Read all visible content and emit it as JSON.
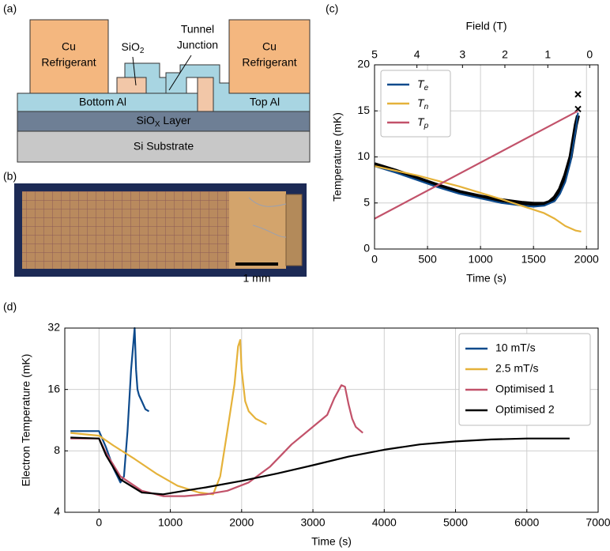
{
  "panel_labels": [
    "(a)",
    "(b)",
    "(c)",
    "(d)"
  ],
  "diagram": {
    "cu_left": [
      "Cu",
      "Refrigerant"
    ],
    "cu_right": [
      "Cu",
      "Refrigerant"
    ],
    "sio2": "SiO2",
    "tunnel": [
      "Tunnel",
      "Junction"
    ],
    "bottom_al": "Bottom Al",
    "top_al": "Top Al",
    "siox": "SiOX Layer",
    "substrate": "Si Substrate"
  },
  "photo": {
    "scale_bar": "1 mm"
  },
  "chart_data": [
    {
      "type": "line",
      "xlabel": "Time (s)",
      "ylabel": "Temperature (mK)",
      "x2label": "Field (T)",
      "xlim": [
        0,
        2110
      ],
      "ylim": [
        0,
        20
      ],
      "xticks": [
        0,
        500,
        1000,
        1500,
        2000
      ],
      "yticks": [
        0,
        5,
        10,
        15,
        20
      ],
      "x2ticks": [
        {
          "value": 0,
          "label": "5"
        },
        {
          "value": 400,
          "label": "4"
        },
        {
          "value": 830,
          "label": "3"
        },
        {
          "value": 1230,
          "label": "2"
        },
        {
          "value": 1635,
          "label": "1"
        },
        {
          "value": 2030,
          "label": "0"
        }
      ],
      "grid": true,
      "legend": "upper left",
      "legend_subscript": true,
      "series": [
        {
          "color": "#000000",
          "linewidth": 5,
          "x": [
            0,
            200,
            400,
            600,
            800,
            1000,
            1200,
            1400,
            1500,
            1600,
            1650,
            1700,
            1750,
            1800,
            1850,
            1900,
            1920
          ],
          "values": [
            9.2,
            8.5,
            7.7,
            6.9,
            6.2,
            5.7,
            5.3,
            5.0,
            4.9,
            4.9,
            5.1,
            5.6,
            6.5,
            8.0,
            10.0,
            13.5,
            14.5
          ]
        },
        {
          "color": "#000000",
          "marker": "x",
          "x": [
            1920,
            1920
          ],
          "values": [
            16.8,
            15.2
          ]
        },
        {
          "name": "Te",
          "color": "#0d4a8c",
          "linewidth": 2.2,
          "x": [
            0,
            200,
            400,
            600,
            800,
            1000,
            1200,
            1400,
            1500,
            1600,
            1700,
            1750,
            1800,
            1850,
            1900,
            1920
          ],
          "values": [
            9.0,
            8.3,
            7.5,
            6.7,
            6.0,
            5.5,
            5.0,
            4.7,
            4.6,
            4.7,
            5.2,
            6.0,
            7.3,
            9.5,
            13.0,
            14.8
          ]
        },
        {
          "name": "Tn",
          "color": "#e5b23a",
          "linewidth": 2.2,
          "x": [
            0,
            400,
            800,
            1200,
            1600,
            1700,
            1800,
            1900,
            1950
          ],
          "values": [
            9.0,
            8.0,
            6.8,
            5.4,
            3.9,
            3.3,
            2.5,
            2.0,
            1.9
          ]
        },
        {
          "name": "Tp",
          "color": "#c2526a",
          "linewidth": 2.2,
          "x": [
            0,
            1920
          ],
          "values": [
            3.3,
            15.0
          ]
        }
      ]
    },
    {
      "type": "line",
      "xlabel": "Time (s)",
      "ylabel": "Electron Temperature (mK)",
      "xlim": [
        -480,
        7000
      ],
      "ylim": [
        4,
        32
      ],
      "yscale": "log",
      "xticks": [
        0,
        1000,
        2000,
        3000,
        4000,
        5000,
        6000,
        7000
      ],
      "yticks": [
        4,
        8,
        16,
        32
      ],
      "grid": true,
      "legend": "upper right",
      "series": [
        {
          "name": "10 mT/s",
          "color": "#0d4a8c",
          "linewidth": 2.2,
          "x": [
            -400,
            -100,
            0,
            100,
            200,
            300,
            350,
            400,
            450,
            500,
            520,
            540,
            560,
            600,
            650,
            700
          ],
          "values": [
            10,
            10,
            10,
            8.3,
            6.6,
            5.6,
            6.0,
            10,
            20,
            32,
            20,
            16,
            15,
            14,
            12.8,
            12.5
          ]
        },
        {
          "name": "2.5 mT/s",
          "color": "#e5b23a",
          "linewidth": 2.2,
          "x": [
            -400,
            0,
            200,
            500,
            800,
            1100,
            1400,
            1600,
            1700,
            1800,
            1900,
            1950,
            1980,
            2000,
            2050,
            2100,
            2200,
            2350
          ],
          "values": [
            9.8,
            9.5,
            8.5,
            7.3,
            6.2,
            5.4,
            5.0,
            4.9,
            6.0,
            10,
            17,
            26,
            28,
            20,
            14,
            12.5,
            11.5,
            10.8
          ]
        },
        {
          "name": "Optimised 1",
          "color": "#c2526a",
          "linewidth": 2.2,
          "x": [
            -400,
            0,
            100,
            300,
            600,
            900,
            1200,
            1500,
            1800,
            2100,
            2400,
            2700,
            3000,
            3200,
            3300,
            3400,
            3450,
            3500,
            3550,
            3600,
            3700
          ],
          "values": [
            9.2,
            9.2,
            7.8,
            6.0,
            5.1,
            4.8,
            4.8,
            4.9,
            5.1,
            5.6,
            6.7,
            8.6,
            10.5,
            12,
            14.5,
            16.8,
            16.5,
            13.5,
            11.5,
            10.5,
            9.8
          ]
        },
        {
          "name": "Optimised 2",
          "color": "#000000",
          "linewidth": 2.2,
          "x": [
            -400,
            0,
            100,
            300,
            600,
            900,
            1200,
            1500,
            2000,
            2500,
            3000,
            3500,
            4000,
            4500,
            5000,
            5500,
            6000,
            6600
          ],
          "values": [
            9.3,
            9.2,
            7.6,
            5.8,
            5.0,
            4.9,
            5.1,
            5.3,
            5.7,
            6.2,
            6.8,
            7.5,
            8.1,
            8.6,
            8.9,
            9.1,
            9.2,
            9.2
          ]
        }
      ]
    }
  ]
}
